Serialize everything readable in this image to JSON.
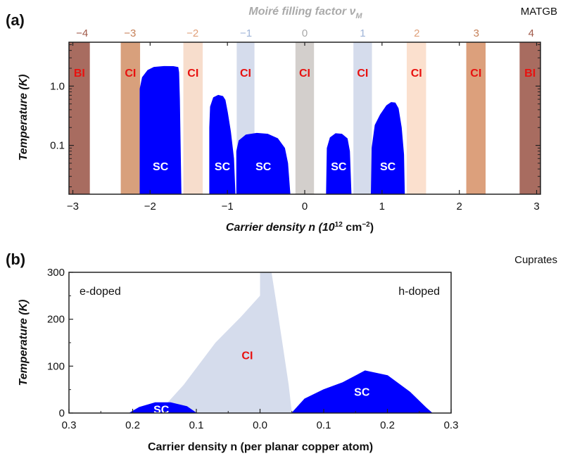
{
  "chart_data": [
    {
      "panel_label": "(a)",
      "type": "area",
      "corner_label": "MATGB",
      "top_axis": {
        "label": "Moiré filling factor ν",
        "label_subscript": "M",
        "ticks": [
          {
            "text": "−4",
            "n": -2.88,
            "color": "#a05a4a"
          },
          {
            "text": "−3",
            "n": -2.26,
            "color": "#c68058"
          },
          {
            "text": "−2",
            "n": -1.45,
            "color": "#e0a07a"
          },
          {
            "text": "−1",
            "n": -0.76,
            "color": "#9fb4d8"
          },
          {
            "text": "0",
            "n": 0.0,
            "color": "#a8a8a8"
          },
          {
            "text": "1",
            "n": 0.75,
            "color": "#9fb4d8"
          },
          {
            "text": "2",
            "n": 1.45,
            "color": "#e0a07a"
          },
          {
            "text": "3",
            "n": 2.22,
            "color": "#c68058"
          },
          {
            "text": "4",
            "n": 2.93,
            "color": "#a05a4a"
          }
        ]
      },
      "xlabel": "Carrier density n (10",
      "xlabel_sup": "12",
      "xlabel_unit": " cm",
      "xlabel_unit_sup": "−2",
      "xlabel_end": ")",
      "ylabel": "Temperature (K)",
      "xlim": [
        -3.05,
        3.05
      ],
      "ylim_log": [
        0.015,
        5.5
      ],
      "y_scale": "log",
      "xticks": [
        {
          "value": -3,
          "text": "−3"
        },
        {
          "value": -2,
          "text": "−2"
        },
        {
          "value": -1,
          "text": "−1"
        },
        {
          "value": 0,
          "text": "0"
        },
        {
          "value": 1,
          "text": "1"
        },
        {
          "value": 2,
          "text": "2"
        },
        {
          "value": 3,
          "text": "3"
        }
      ],
      "yticks": [
        {
          "value": 0.1,
          "text": "0.1"
        },
        {
          "value": 1.0,
          "text": "1.0"
        }
      ],
      "bands": [
        {
          "label": "BI",
          "from": -3.05,
          "to": -2.78,
          "color": "#a86c60"
        },
        {
          "label": "CI",
          "from": -2.38,
          "to": -2.13,
          "color": "#d8a07c"
        },
        {
          "label": "CI",
          "from": -1.57,
          "to": -1.32,
          "color": "#f7ddcc"
        },
        {
          "label": "CI",
          "from": -0.88,
          "to": -0.65,
          "color": "#d5dcec"
        },
        {
          "label": "CI",
          "from": -0.12,
          "to": 0.12,
          "color": "#d3cfcc"
        },
        {
          "label": "CI",
          "from": 0.63,
          "to": 0.87,
          "color": "#d5dcec"
        },
        {
          "label": "CI",
          "from": 1.32,
          "to": 1.57,
          "color": "#fbe0ce"
        },
        {
          "label": "CI",
          "from": 2.09,
          "to": 2.34,
          "color": "#dca07c"
        },
        {
          "label": "BI",
          "from": 2.78,
          "to": 3.05,
          "color": "#a86c60"
        }
      ],
      "sc_label": "SC",
      "sc_domes": [
        {
          "label": "SC",
          "points": [
            [
              -2.13,
              0.015
            ],
            [
              -2.13,
              0.9
            ],
            [
              -2.1,
              1.4
            ],
            [
              -2.03,
              1.85
            ],
            [
              -1.95,
              2.08
            ],
            [
              -1.82,
              2.15
            ],
            [
              -1.7,
              2.14
            ],
            [
              -1.64,
              2.07
            ],
            [
              -1.63,
              1.7
            ],
            [
              -1.62,
              0.6
            ],
            [
              -1.6,
              0.015
            ]
          ]
        },
        {
          "label": "SC",
          "points": [
            [
              -1.23,
              0.015
            ],
            [
              -1.23,
              0.2
            ],
            [
              -1.22,
              0.45
            ],
            [
              -1.18,
              0.64
            ],
            [
              -1.12,
              0.7
            ],
            [
              -1.06,
              0.67
            ],
            [
              -1.03,
              0.58
            ],
            [
              -1.0,
              0.36
            ],
            [
              -0.96,
              0.17
            ],
            [
              -0.92,
              0.06
            ],
            [
              -0.9,
              0.015
            ]
          ]
        },
        {
          "label": "SC",
          "points": [
            [
              -0.88,
              0.015
            ],
            [
              -0.88,
              0.08
            ],
            [
              -0.85,
              0.12
            ],
            [
              -0.76,
              0.15
            ],
            [
              -0.62,
              0.16
            ],
            [
              -0.48,
              0.155
            ],
            [
              -0.35,
              0.13
            ],
            [
              -0.26,
              0.09
            ],
            [
              -0.22,
              0.05
            ],
            [
              -0.19,
              0.015
            ]
          ]
        },
        {
          "label": "SC",
          "points": [
            [
              0.28,
              0.015
            ],
            [
              0.29,
              0.09
            ],
            [
              0.33,
              0.135
            ],
            [
              0.4,
              0.158
            ],
            [
              0.48,
              0.155
            ],
            [
              0.55,
              0.13
            ],
            [
              0.58,
              0.08
            ],
            [
              0.6,
              0.015
            ]
          ]
        },
        {
          "label": "SC",
          "points": [
            [
              0.86,
              0.015
            ],
            [
              0.87,
              0.09
            ],
            [
              0.91,
              0.22
            ],
            [
              0.98,
              0.33
            ],
            [
              1.06,
              0.47
            ],
            [
              1.12,
              0.53
            ],
            [
              1.17,
              0.52
            ],
            [
              1.21,
              0.42
            ],
            [
              1.25,
              0.2
            ],
            [
              1.28,
              0.07
            ],
            [
              1.29,
              0.015
            ]
          ]
        }
      ]
    },
    {
      "panel_label": "(b)",
      "type": "area",
      "corner_label": "Cuprates",
      "left_label": "e-doped",
      "right_label": "h-doped",
      "xlabel": "Carrier density n (per planar copper atom)",
      "ylabel": "Temperature (K)",
      "xlim": [
        -0.3,
        0.3
      ],
      "ylim": [
        0,
        300
      ],
      "xticks": [
        {
          "value": -0.3,
          "text": "0.3"
        },
        {
          "value": -0.2,
          "text": "0.2"
        },
        {
          "value": -0.1,
          "text": "0.1"
        },
        {
          "value": 0.0,
          "text": "0.0"
        },
        {
          "value": 0.1,
          "text": "0.1"
        },
        {
          "value": 0.2,
          "text": "0.2"
        },
        {
          "value": 0.3,
          "text": "0.3"
        }
      ],
      "yticks": [
        {
          "value": 0,
          "text": "0"
        },
        {
          "value": 100,
          "text": "100"
        },
        {
          "value": 200,
          "text": "200"
        },
        {
          "value": 300,
          "text": "300"
        }
      ],
      "ci_region": {
        "label": "CI",
        "color": "#d5dcec",
        "points": [
          [
            -0.16,
            0
          ],
          [
            -0.12,
            60
          ],
          [
            -0.07,
            150
          ],
          [
            -0.03,
            205
          ],
          [
            0.0,
            250
          ],
          [
            0.0,
            300
          ],
          [
            0.018,
            300
          ],
          [
            0.025,
            240
          ],
          [
            0.035,
            150
          ],
          [
            0.045,
            60
          ],
          [
            0.05,
            0
          ]
        ]
      },
      "sc_domes": [
        {
          "label": "SC",
          "points": [
            [
              -0.205,
              0
            ],
            [
              -0.19,
              12
            ],
            [
              -0.165,
              22
            ],
            [
              -0.14,
              22
            ],
            [
              -0.115,
              14
            ],
            [
              -0.1,
              0
            ]
          ]
        },
        {
          "label": "SC",
          "points": [
            [
              0.05,
              0
            ],
            [
              0.07,
              30
            ],
            [
              0.1,
              50
            ],
            [
              0.13,
              65
            ],
            [
              0.165,
              90
            ],
            [
              0.2,
              80
            ],
            [
              0.235,
              45
            ],
            [
              0.26,
              12
            ],
            [
              0.27,
              0
            ]
          ]
        }
      ]
    }
  ]
}
